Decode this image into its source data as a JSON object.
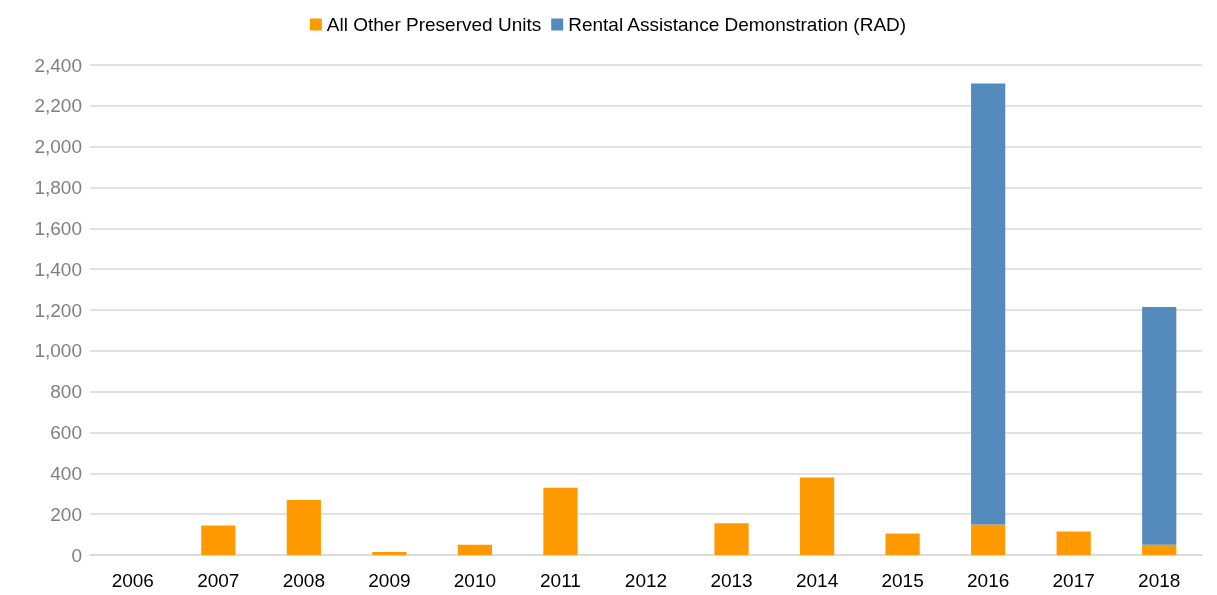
{
  "chart_data": {
    "type": "bar",
    "stacked": true,
    "categories": [
      "2006",
      "2007",
      "2008",
      "2009",
      "2010",
      "2011",
      "2012",
      "2013",
      "2014",
      "2015",
      "2016",
      "2017",
      "2018"
    ],
    "series": [
      {
        "name": "All Other Preserved Units",
        "color": "#ff9900",
        "values": [
          0,
          145,
          270,
          15,
          50,
          330,
          0,
          155,
          380,
          105,
          150,
          115,
          50
        ]
      },
      {
        "name": "Rental Assistance Demonstration (RAD)",
        "color": "#558bbc",
        "values": [
          0,
          0,
          0,
          0,
          0,
          0,
          0,
          0,
          0,
          0,
          2160,
          0,
          1165
        ]
      }
    ],
    "ylim": [
      0,
      2400
    ],
    "yticks": [
      0,
      200,
      400,
      600,
      800,
      {
        "value": 1000,
        "label": "1,000"
      },
      {
        "value": 1200,
        "label": "1,200"
      },
      {
        "value": 1400,
        "label": "1,400"
      },
      {
        "value": 1600,
        "label": "1,600"
      },
      {
        "value": 1800,
        "label": "1,800"
      },
      {
        "value": 2000,
        "label": "2,000"
      },
      {
        "value": 2200,
        "label": "2,200"
      },
      {
        "value": 2400,
        "label": "2,400"
      }
    ],
    "grid": "y",
    "legend": "top"
  }
}
